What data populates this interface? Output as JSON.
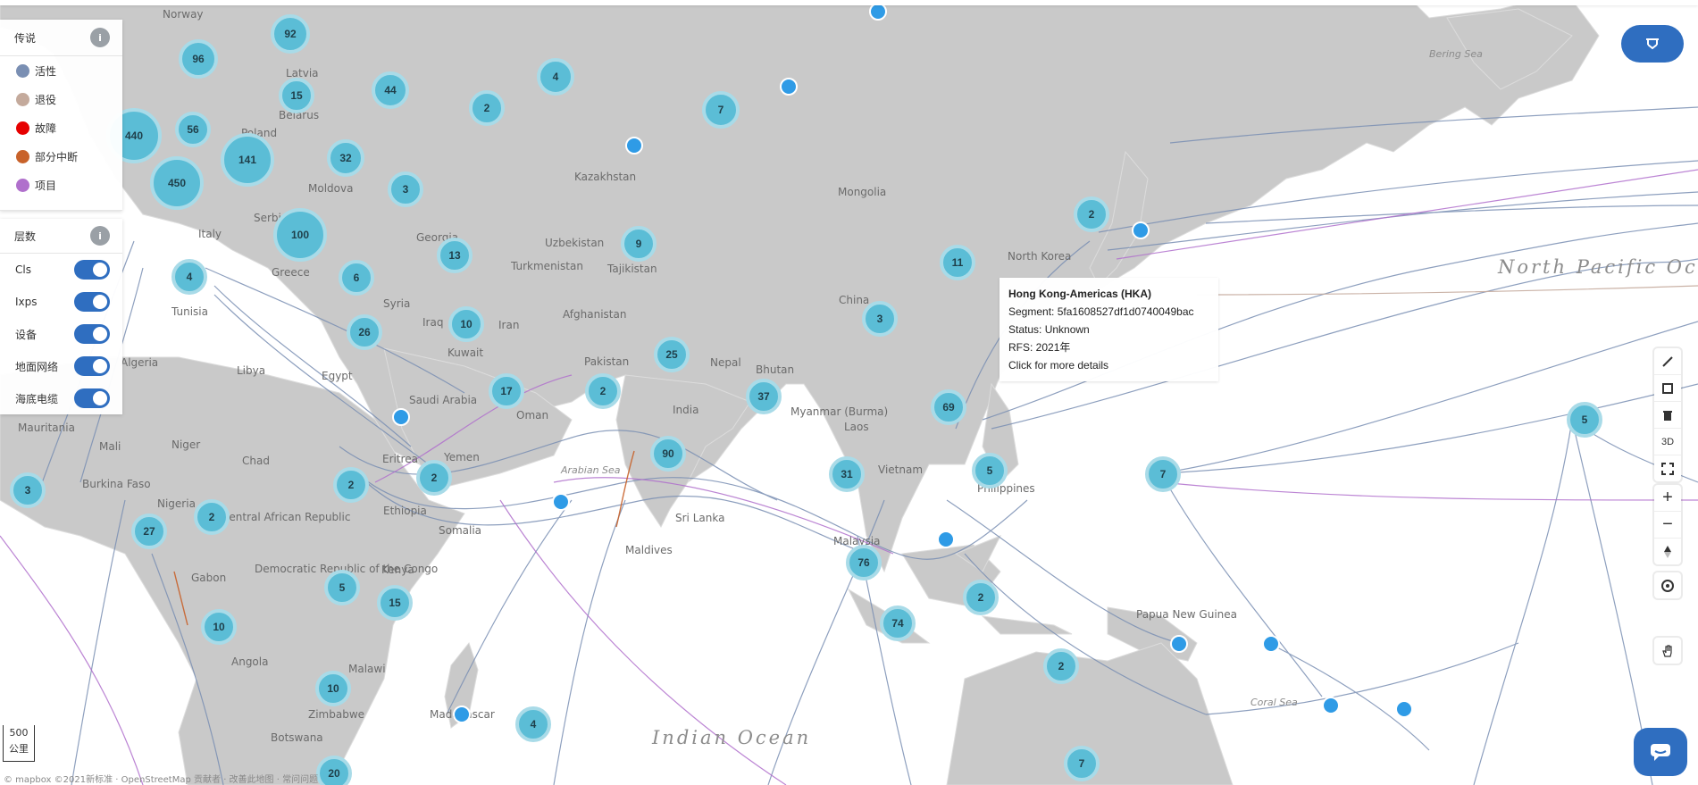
{
  "legend": {
    "title": "传说",
    "items": [
      {
        "label": "活性",
        "color": "#7a8fb3"
      },
      {
        "label": "退役",
        "color": "#c4aa9c"
      },
      {
        "label": "故障",
        "color": "#e60000"
      },
      {
        "label": "部分中断",
        "color": "#c8622a"
      },
      {
        "label": "项目",
        "color": "#b070cc"
      }
    ]
  },
  "layers": {
    "title": "层数",
    "items": [
      {
        "label": "Cls",
        "on": true
      },
      {
        "label": "Ixps",
        "on": true
      },
      {
        "label": "设备",
        "on": true
      },
      {
        "label": "地面网络",
        "on": true
      },
      {
        "label": "海底电缆",
        "on": true
      }
    ]
  },
  "tooltip": {
    "title": "Hong Kong-Americas (HKA)",
    "segment": "Segment: 5fa1608527df1d0740049bac",
    "status": "Status: Unknown",
    "rfs": "RFS: 2021年",
    "link": "Click for more details"
  },
  "controls": {
    "view_3d": "3D",
    "zoom_in": "+",
    "zoom_out": "−"
  },
  "scale": {
    "value": "500",
    "unit": "公里"
  },
  "attribution": "© mapbox ©2021新标准 · OpenStreetMap 贡献者 · 改善此地图 · 常问问题",
  "places": [
    {
      "name": "Latvia"
    },
    {
      "name": "Belarus"
    },
    {
      "name": "Poland"
    },
    {
      "name": "Moldova"
    },
    {
      "name": "Kazakhstan"
    },
    {
      "name": "Mongolia"
    },
    {
      "name": "Uzbekistan"
    },
    {
      "name": "Turkmenistan"
    },
    {
      "name": "Tajikistan"
    },
    {
      "name": "Afghanistan"
    },
    {
      "name": "Pakistan"
    },
    {
      "name": "Nepal"
    },
    {
      "name": "Bhutan"
    },
    {
      "name": "India"
    },
    {
      "name": "China"
    },
    {
      "name": "North Korea"
    },
    {
      "name": "Myanmar (Burma)"
    },
    {
      "name": "Laos"
    },
    {
      "name": "Vietnam"
    },
    {
      "name": "Philippines"
    },
    {
      "name": "Malaysia"
    },
    {
      "name": "Sri Lanka"
    },
    {
      "name": "Maldives"
    },
    {
      "name": "Papua New Guinea"
    },
    {
      "name": "Iraq"
    },
    {
      "name": "Iran"
    },
    {
      "name": "Syria"
    },
    {
      "name": "Kuwait"
    },
    {
      "name": "Saudi Arabia"
    },
    {
      "name": "Oman"
    },
    {
      "name": "Yemen"
    },
    {
      "name": "Eritrea"
    },
    {
      "name": "Ethiopia"
    },
    {
      "name": "Somalia"
    },
    {
      "name": "Kenya"
    },
    {
      "name": "Egypt"
    },
    {
      "name": "Libya"
    },
    {
      "name": "Tunisia"
    },
    {
      "name": "Algeria"
    },
    {
      "name": "Mauritania"
    },
    {
      "name": "Mali"
    },
    {
      "name": "Niger"
    },
    {
      "name": "Chad"
    },
    {
      "name": "Nigeria"
    },
    {
      "name": "Burkina Faso"
    },
    {
      "name": "Central African Republic"
    },
    {
      "name": "Democratic Republic of the Congo"
    },
    {
      "name": "Gabon"
    },
    {
      "name": "Angola"
    },
    {
      "name": "Zimbabwe"
    },
    {
      "name": "Botswana"
    },
    {
      "name": "Madagascar"
    },
    {
      "name": "Malawi"
    },
    {
      "name": "Georgia"
    },
    {
      "name": "Greece"
    },
    {
      "name": "Italy"
    },
    {
      "name": "Serbia"
    },
    {
      "name": "Norway"
    }
  ],
  "oceans": [
    {
      "name": "North Pacific Ocean"
    },
    {
      "name": "Indian Ocean"
    },
    {
      "name": "Bering Sea"
    },
    {
      "name": "Coral Sea"
    },
    {
      "name": "Arabian Sea"
    }
  ],
  "clusters": [
    {
      "count": "92"
    },
    {
      "count": "96"
    },
    {
      "count": "15"
    },
    {
      "count": "44"
    },
    {
      "count": "4"
    },
    {
      "count": "2"
    },
    {
      "count": "7"
    },
    {
      "count": "440"
    },
    {
      "count": "56"
    },
    {
      "count": "141"
    },
    {
      "count": "32"
    },
    {
      "count": "450"
    },
    {
      "count": "3"
    },
    {
      "count": "100"
    },
    {
      "count": "2"
    },
    {
      "count": "9"
    },
    {
      "count": "13"
    },
    {
      "count": "11"
    },
    {
      "count": "6"
    },
    {
      "count": "4"
    },
    {
      "count": "3"
    },
    {
      "count": "10"
    },
    {
      "count": "26"
    },
    {
      "count": "25"
    },
    {
      "count": "17"
    },
    {
      "count": "2"
    },
    {
      "count": "37"
    },
    {
      "count": "69"
    },
    {
      "count": "5"
    },
    {
      "count": "90"
    },
    {
      "count": "7"
    },
    {
      "count": "31"
    },
    {
      "count": "5"
    },
    {
      "count": "2"
    },
    {
      "count": "2"
    },
    {
      "count": "3"
    },
    {
      "count": "2"
    },
    {
      "count": "27"
    },
    {
      "count": "76"
    },
    {
      "count": "2"
    },
    {
      "count": "5"
    },
    {
      "count": "15"
    },
    {
      "count": "10"
    },
    {
      "count": "74"
    },
    {
      "count": "2"
    },
    {
      "count": "10"
    },
    {
      "count": "4"
    },
    {
      "count": "7"
    },
    {
      "count": "20"
    }
  ]
}
